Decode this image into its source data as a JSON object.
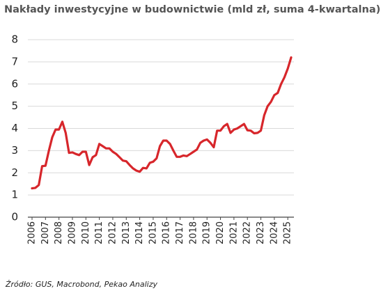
{
  "chart_data": {
    "type": "line",
    "title": "Nakłady inwestycyjne w budownictwie (mld zł, suma 4-kwartalna)",
    "source": "Źródło: GUS, Macrobond, Pekao Analizy",
    "x": [
      2006.0,
      2006.25,
      2006.5,
      2006.75,
      2007.0,
      2007.25,
      2007.5,
      2007.75,
      2008.0,
      2008.25,
      2008.5,
      2008.75,
      2009.0,
      2009.25,
      2009.5,
      2009.75,
      2010.0,
      2010.25,
      2010.5,
      2010.75,
      2011.0,
      2011.25,
      2011.5,
      2011.75,
      2012.0,
      2012.25,
      2012.5,
      2012.75,
      2013.0,
      2013.25,
      2013.5,
      2013.75,
      2014.0,
      2014.25,
      2014.5,
      2014.75,
      2015.0,
      2015.25,
      2015.5,
      2015.75,
      2016.0,
      2016.25,
      2016.5,
      2016.75,
      2017.0,
      2017.25,
      2017.5,
      2017.75,
      2018.0,
      2018.25,
      2018.5,
      2018.75,
      2019.0,
      2019.25,
      2019.5,
      2019.75,
      2020.0,
      2020.25,
      2020.5,
      2020.75,
      2021.0,
      2021.25,
      2021.5,
      2021.75,
      2022.0,
      2022.25,
      2022.5,
      2022.75,
      2023.0,
      2023.25,
      2023.5,
      2023.75,
      2024.0,
      2024.25,
      2024.5,
      2024.75,
      2025.0,
      2025.25
    ],
    "series": [
      {
        "color": "#d7262b",
        "values": [
          1.3,
          1.32,
          1.45,
          2.3,
          2.32,
          3.0,
          3.6,
          3.95,
          3.95,
          4.3,
          3.8,
          2.9,
          2.92,
          2.85,
          2.8,
          2.95,
          2.95,
          2.35,
          2.7,
          2.8,
          3.3,
          3.2,
          3.1,
          3.1,
          2.95,
          2.85,
          2.7,
          2.55,
          2.52,
          2.35,
          2.2,
          2.1,
          2.05,
          2.22,
          2.2,
          2.45,
          2.5,
          2.65,
          3.2,
          3.45,
          3.45,
          3.3,
          3.0,
          2.72,
          2.72,
          2.78,
          2.75,
          2.85,
          2.95,
          3.05,
          3.35,
          3.45,
          3.5,
          3.35,
          3.15,
          3.9,
          3.9,
          4.1,
          4.2,
          3.8,
          3.95,
          4.0,
          4.1,
          4.2,
          3.92,
          3.9,
          3.78,
          3.8,
          3.9,
          4.6,
          5.0,
          5.2,
          5.5,
          5.6,
          6.0,
          6.3,
          6.7,
          7.2
        ]
      }
    ],
    "xlim": [
      2006,
      2025.25
    ],
    "xticks": [
      2006,
      2007,
      2008,
      2009,
      2010,
      2011,
      2012,
      2013,
      2014,
      2015,
      2016,
      2017,
      2018,
      2019,
      2020,
      2021,
      2022,
      2023,
      2024,
      2025
    ],
    "ylim": [
      0,
      8
    ],
    "yticks": [
      0,
      1,
      2,
      3,
      4,
      5,
      6,
      7,
      8
    ],
    "grid": true
  }
}
